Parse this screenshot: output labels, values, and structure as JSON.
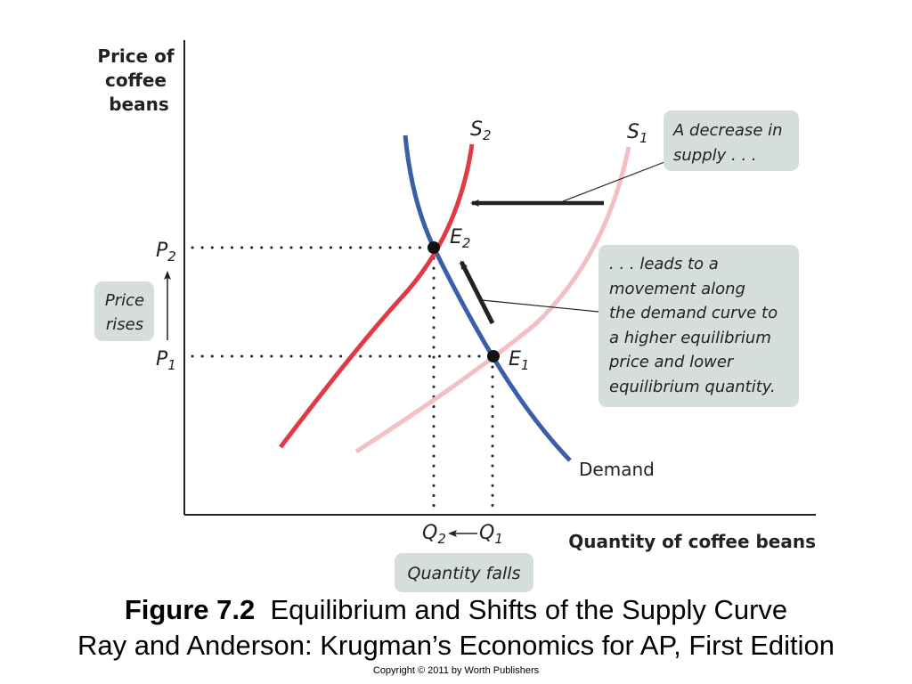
{
  "axes": {
    "y_title": [
      "Price of",
      "coffee",
      "beans"
    ],
    "x_title": "Quantity of coffee beans"
  },
  "curves": {
    "s2": {
      "letter": "S",
      "sub": "2",
      "color": "#e03a45"
    },
    "s1": {
      "letter": "S",
      "sub": "1",
      "color": "#f4bfc3"
    },
    "demand": {
      "label": "Demand",
      "color": "#3a5fa8"
    }
  },
  "points": {
    "e2": {
      "letter": "E",
      "sub": "2"
    },
    "e1": {
      "letter": "E",
      "sub": "1"
    }
  },
  "ticks": {
    "p2": {
      "letter": "P",
      "sub": "2"
    },
    "p1": {
      "letter": "P",
      "sub": "1"
    },
    "q2": {
      "letter": "Q",
      "sub": "2"
    },
    "q1": {
      "letter": "Q",
      "sub": "1"
    }
  },
  "notes": {
    "decrease": [
      "A decrease in",
      "supply . . ."
    ],
    "movement": [
      ". . . leads to a",
      "movement along",
      "the demand curve to",
      "a higher equilibrium",
      "price and lower",
      "equilibrium quantity."
    ],
    "price_rises": [
      "Price",
      "rises"
    ],
    "quantity_falls": "Quantity falls",
    "box_color": "#d5dedd"
  },
  "caption": {
    "figure_number": "Figure 7.2",
    "figure_title": "Equilibrium and Shifts of the Supply Curve",
    "source": "Ray and Anderson: Krugman’s Economics for AP, First Edition",
    "copyright": "Copyright © 2011 by Worth Publishers"
  }
}
